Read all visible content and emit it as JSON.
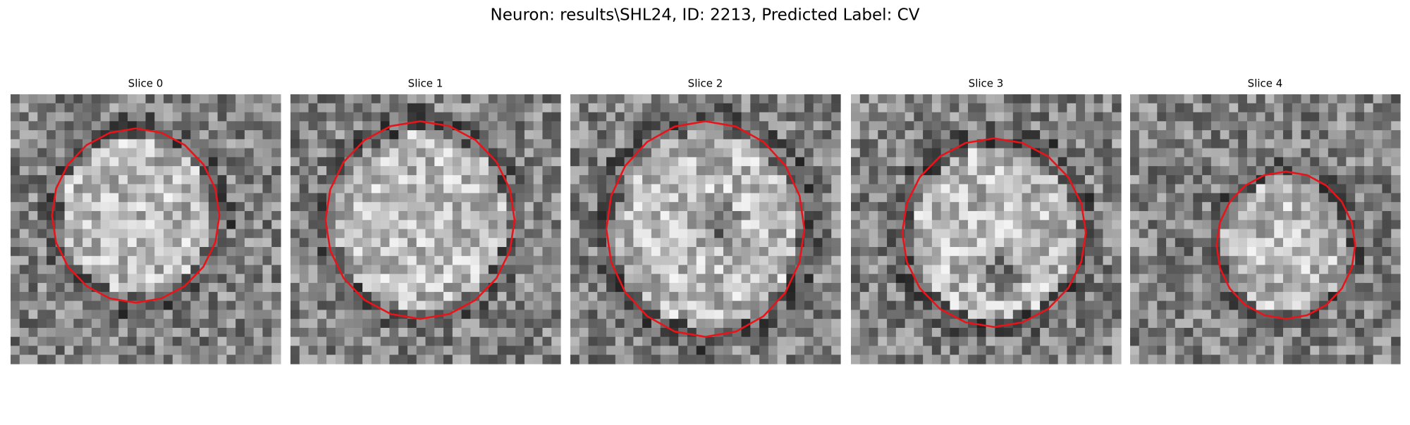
{
  "title": "Neuron: results\\SHL24, ID: 2213, Predicted Label: CV",
  "panels": [
    {
      "title": "Slice 0"
    },
    {
      "title": "Slice 1"
    },
    {
      "title": "Slice 2"
    },
    {
      "title": "Slice 3"
    },
    {
      "title": "Slice 4"
    }
  ]
}
